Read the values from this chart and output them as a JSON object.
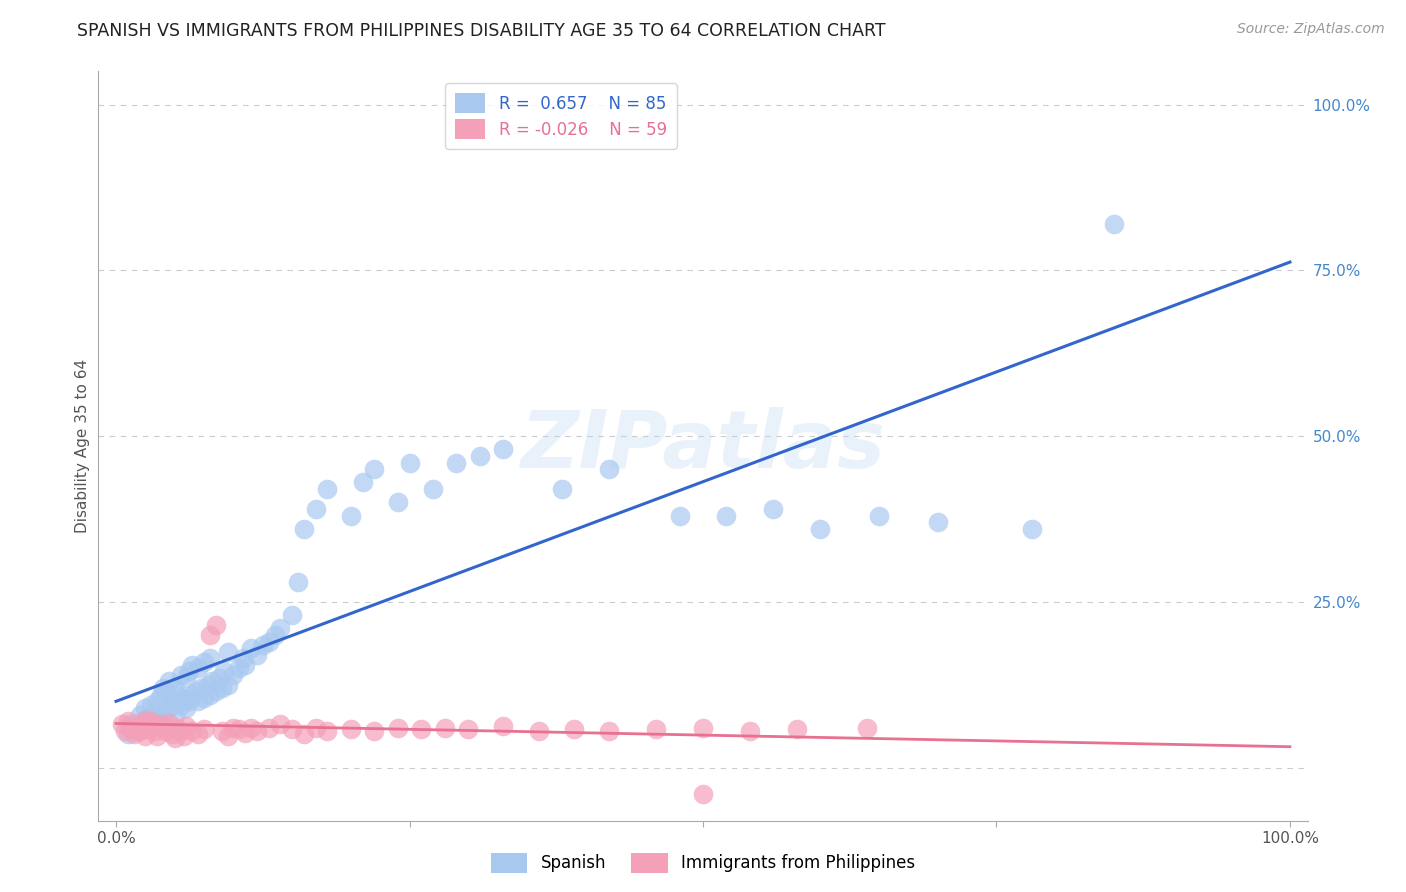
{
  "title": "SPANISH VS IMMIGRANTS FROM PHILIPPINES DISABILITY AGE 35 TO 64 CORRELATION CHART",
  "source": "Source: ZipAtlas.com",
  "ylabel": "Disability Age 35 to 64",
  "r_blue": 0.657,
  "n_blue": 85,
  "r_pink": -0.026,
  "n_pink": 59,
  "blue_color": "#A8C8F0",
  "pink_color": "#F4A0B8",
  "blue_line_color": "#3366CC",
  "pink_line_color": "#E87090",
  "watermark": "ZIPatlas",
  "legend_label_blue": "Spanish",
  "legend_label_pink": "Immigrants from Philippines",
  "blue_scatter_x": [
    0.01,
    0.012,
    0.015,
    0.018,
    0.02,
    0.022,
    0.025,
    0.025,
    0.028,
    0.03,
    0.03,
    0.032,
    0.035,
    0.035,
    0.038,
    0.038,
    0.04,
    0.04,
    0.042,
    0.042,
    0.045,
    0.045,
    0.048,
    0.05,
    0.05,
    0.052,
    0.055,
    0.055,
    0.058,
    0.06,
    0.06,
    0.062,
    0.062,
    0.065,
    0.065,
    0.068,
    0.07,
    0.07,
    0.072,
    0.075,
    0.075,
    0.078,
    0.08,
    0.08,
    0.082,
    0.085,
    0.088,
    0.09,
    0.092,
    0.095,
    0.095,
    0.1,
    0.105,
    0.108,
    0.11,
    0.115,
    0.12,
    0.125,
    0.13,
    0.135,
    0.14,
    0.15,
    0.155,
    0.16,
    0.17,
    0.18,
    0.2,
    0.21,
    0.22,
    0.24,
    0.25,
    0.27,
    0.29,
    0.31,
    0.33,
    0.38,
    0.42,
    0.48,
    0.52,
    0.56,
    0.6,
    0.65,
    0.7,
    0.78,
    0.85
  ],
  "blue_scatter_y": [
    0.05,
    0.065,
    0.06,
    0.055,
    0.08,
    0.07,
    0.06,
    0.09,
    0.075,
    0.065,
    0.095,
    0.08,
    0.07,
    0.1,
    0.075,
    0.11,
    0.08,
    0.12,
    0.085,
    0.115,
    0.09,
    0.13,
    0.1,
    0.08,
    0.12,
    0.11,
    0.095,
    0.14,
    0.105,
    0.09,
    0.135,
    0.1,
    0.145,
    0.11,
    0.155,
    0.115,
    0.1,
    0.15,
    0.12,
    0.105,
    0.16,
    0.125,
    0.11,
    0.165,
    0.13,
    0.115,
    0.135,
    0.12,
    0.145,
    0.125,
    0.175,
    0.14,
    0.15,
    0.165,
    0.155,
    0.18,
    0.17,
    0.185,
    0.19,
    0.2,
    0.21,
    0.23,
    0.28,
    0.36,
    0.39,
    0.42,
    0.38,
    0.43,
    0.45,
    0.4,
    0.46,
    0.42,
    0.46,
    0.47,
    0.48,
    0.42,
    0.45,
    0.38,
    0.38,
    0.39,
    0.36,
    0.38,
    0.37,
    0.36,
    0.82
  ],
  "pink_scatter_x": [
    0.005,
    0.008,
    0.01,
    0.012,
    0.015,
    0.018,
    0.02,
    0.022,
    0.025,
    0.025,
    0.028,
    0.03,
    0.03,
    0.032,
    0.035,
    0.038,
    0.04,
    0.042,
    0.045,
    0.048,
    0.05,
    0.052,
    0.055,
    0.058,
    0.06,
    0.065,
    0.07,
    0.075,
    0.08,
    0.085,
    0.09,
    0.095,
    0.1,
    0.105,
    0.11,
    0.115,
    0.12,
    0.13,
    0.14,
    0.15,
    0.16,
    0.17,
    0.18,
    0.2,
    0.22,
    0.24,
    0.26,
    0.28,
    0.3,
    0.33,
    0.36,
    0.39,
    0.42,
    0.46,
    0.5,
    0.54,
    0.58,
    0.64,
    0.5
  ],
  "pink_scatter_y": [
    0.065,
    0.055,
    0.07,
    0.06,
    0.05,
    0.06,
    0.055,
    0.065,
    0.048,
    0.072,
    0.058,
    0.062,
    0.07,
    0.055,
    0.048,
    0.065,
    0.06,
    0.055,
    0.068,
    0.05,
    0.045,
    0.06,
    0.055,
    0.048,
    0.062,
    0.055,
    0.05,
    0.058,
    0.2,
    0.215,
    0.055,
    0.048,
    0.06,
    0.058,
    0.052,
    0.06,
    0.055,
    0.06,
    0.065,
    0.058,
    0.05,
    0.06,
    0.055,
    0.058,
    0.055,
    0.06,
    0.058,
    0.06,
    0.058,
    0.062,
    0.055,
    0.058,
    0.055,
    0.058,
    0.06,
    0.055,
    0.058,
    0.06,
    -0.04
  ],
  "background_color": "#FFFFFF",
  "grid_color": "#CCCCCC",
  "title_color": "#222222",
  "axis_label_color": "#555555",
  "right_tick_color": "#4488CC",
  "ytick_values": [
    0.0,
    0.25,
    0.5,
    0.75,
    1.0
  ],
  "ytick_labels": [
    "",
    "25.0%",
    "50.0%",
    "75.0%",
    "100.0%"
  ],
  "xlim": [
    -0.015,
    1.015
  ],
  "ylim": [
    -0.08,
    1.05
  ]
}
